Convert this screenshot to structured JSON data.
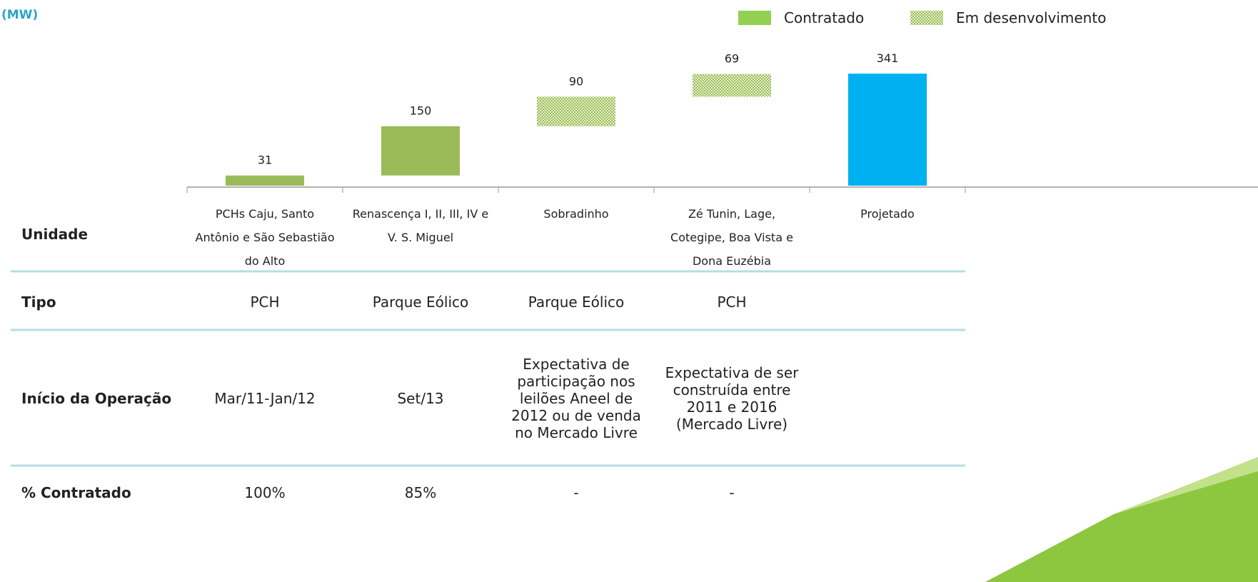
{
  "chart_data": {
    "type": "waterfall",
    "axis_label": "(MW)",
    "categories": [
      "PCHs Caju, Santo Antônio e São Sebastião do Alto",
      "Renascença I, II, III, IV e V. S. Miguel",
      "Sobradinho",
      "Zé Tunin, Lage, Cotegipe, Boa Vista e Dona Euzébia",
      "Projetado"
    ],
    "values": [
      31,
      150,
      90,
      69,
      341
    ],
    "bar_styles": [
      "solid",
      "solid",
      "hatch",
      "hatch",
      "total"
    ],
    "color": "#9bbb59",
    "hatch_color": "#9bbb59",
    "total_color": "#00b0f0",
    "legend": [
      {
        "name": "Contratado",
        "color": "#92d050",
        "pattern": "solid"
      },
      {
        "name": "Em desenvolvimento",
        "color": "#92d050",
        "pattern": "hatch"
      }
    ],
    "ylim": [
      0,
      400
    ]
  },
  "table": {
    "row_labels": [
      "Unidade",
      "Tipo",
      "Início da Operação",
      "% Contratado"
    ],
    "rows": [
      [
        "PCH",
        "Parque Eólico",
        "Parque Eólico",
        "PCH"
      ],
      [
        "Mar/11-Jan/12",
        "Set/13",
        "Expectativa de participação nos leilões Aneel de 2012 ou de venda no Mercado Livre",
        "Expectativa de ser construída entre 2011 e 2016 (Mercado Livre)"
      ],
      [
        "100%",
        "85%",
        "-",
        "-"
      ]
    ]
  }
}
